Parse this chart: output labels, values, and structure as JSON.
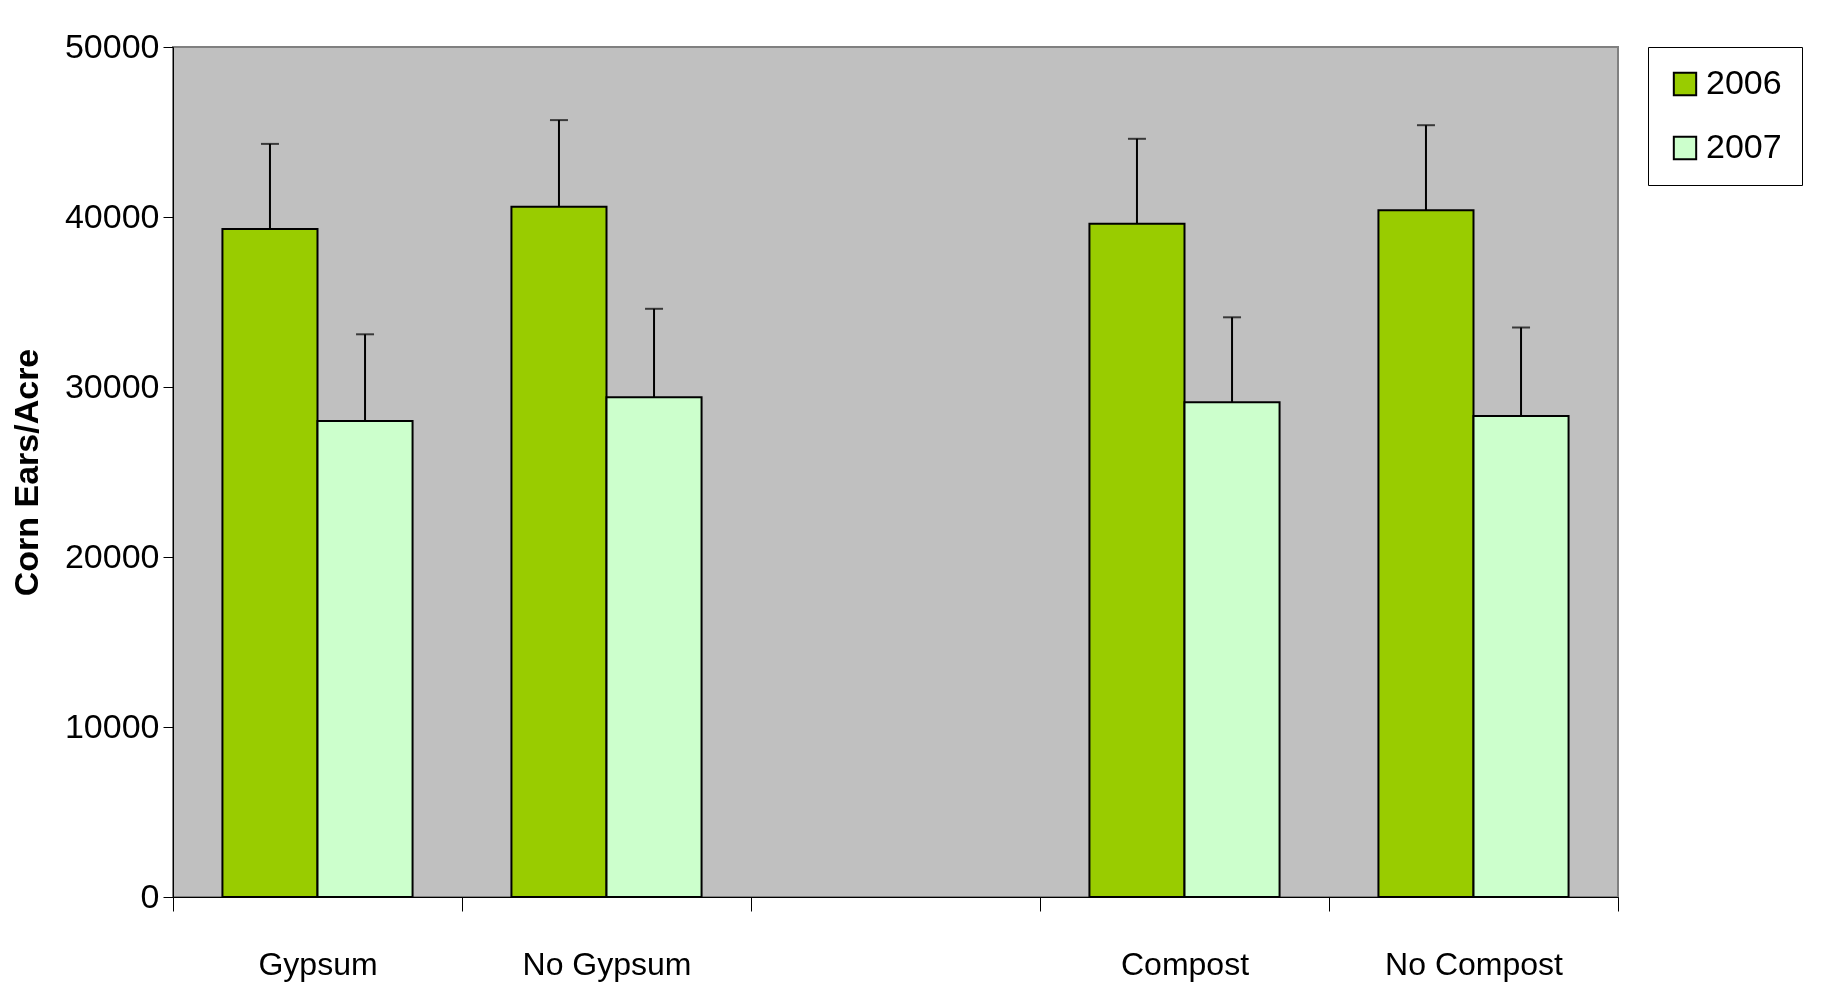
{
  "chart_data": {
    "type": "bar",
    "ylabel": "Corn Ears/Acre",
    "categories": [
      "Gypsum",
      "No Gypsum",
      null,
      "Compost",
      "No Compost"
    ],
    "series": [
      {
        "name": "2006",
        "color": "#99cc00",
        "values": [
          39300,
          40600,
          null,
          39600,
          40400
        ],
        "errors": [
          [
            39300,
            44300
          ],
          [
            40600,
            45700
          ],
          null,
          [
            39600,
            44600
          ],
          [
            40400,
            45400
          ]
        ]
      },
      {
        "name": "2007",
        "color": "#ccffcc",
        "values": [
          28000,
          29400,
          null,
          29100,
          28300
        ],
        "errors": [
          [
            28000,
            33100
          ],
          [
            29400,
            34600
          ],
          null,
          [
            29100,
            34100
          ],
          [
            28300,
            33500
          ]
        ]
      }
    ],
    "ylim": [
      0,
      50000
    ],
    "yticks": [
      0,
      10000,
      20000,
      30000,
      40000,
      50000
    ],
    "grid": false,
    "legend": "right"
  }
}
